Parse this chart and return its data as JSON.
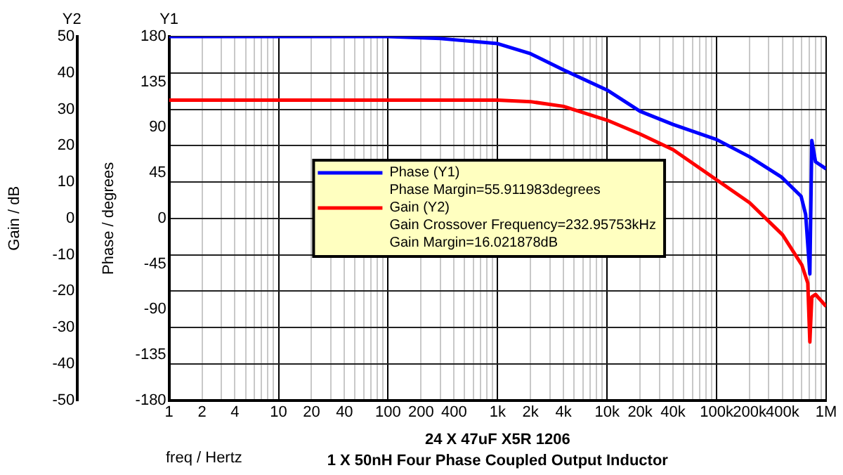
{
  "chart_data": {
    "type": "line",
    "xlabel": "freq / Hertz",
    "ylabel": "Phase / degrees",
    "y2label": "Gain / dB",
    "annotations": [
      "Y1",
      "Y2",
      "Phase Margin=55.911983degrees",
      "Gain Crossover Frequency=232.95753kHz",
      "Gain Margin=16.021878dB",
      "24 X 47uF X5R 1206",
      "1 X 50nH Four Phase Coupled Output Inductor"
    ],
    "log": "x",
    "grid": true,
    "legend": "left",
    "marker": "none",
    "line_style": "solid",
    "xlim": [
      1,
      1000000
    ],
    "xticks": [
      1,
      2,
      {
        "value": 3,
        "label": null
      },
      4,
      {
        "value": 5,
        "label": null
      },
      {
        "value": 6,
        "label": null
      },
      {
        "value": 7,
        "label": null
      },
      {
        "value": 8,
        "label": null
      },
      {
        "value": 9,
        "label": null
      },
      10,
      20,
      {
        "value": 30,
        "label": null
      },
      40,
      {
        "value": 50,
        "label": null
      },
      {
        "value": 60,
        "label": null
      },
      {
        "value": 70,
        "label": null
      },
      {
        "value": 80,
        "label": null
      },
      {
        "value": 90,
        "label": null
      },
      100,
      200,
      {
        "value": 300,
        "label": null
      },
      400,
      {
        "value": 500,
        "label": null
      },
      {
        "value": 600,
        "label": null
      },
      {
        "value": 700,
        "label": null
      },
      {
        "value": 800,
        "label": null
      },
      {
        "value": 900,
        "label": null
      },
      {
        "value": 1000,
        "label": "1k"
      },
      {
        "value": 2000,
        "label": "2k"
      },
      {
        "value": 3000,
        "label": null
      },
      {
        "value": 4000,
        "label": "4k"
      },
      {
        "value": 5000,
        "label": null
      },
      {
        "value": 6000,
        "label": null
      },
      {
        "value": 7000,
        "label": null
      },
      {
        "value": 8000,
        "label": null
      },
      {
        "value": 9000,
        "label": null
      },
      {
        "value": 10000,
        "label": "10k"
      },
      {
        "value": 20000,
        "label": "20k"
      },
      {
        "value": 30000,
        "label": null
      },
      {
        "value": 40000,
        "label": "40k"
      },
      {
        "value": 50000,
        "label": null
      },
      {
        "value": 60000,
        "label": null
      },
      {
        "value": 70000,
        "label": null
      },
      {
        "value": 80000,
        "label": null
      },
      {
        "value": 90000,
        "label": null
      },
      {
        "value": 100000,
        "label": "100k"
      },
      {
        "value": 200000,
        "label": "200k"
      },
      {
        "value": 300000,
        "label": null
      },
      {
        "value": 400000,
        "label": "400k"
      },
      {
        "value": 500000,
        "label": null
      },
      {
        "value": 600000,
        "label": null
      },
      {
        "value": 700000,
        "label": null
      },
      {
        "value": 800000,
        "label": null
      },
      {
        "value": 900000,
        "label": null
      },
      {
        "value": 1000000,
        "label": "1M"
      }
    ],
    "ylim": [
      -180,
      180
    ],
    "yticks": [
      -180,
      -135,
      -90,
      -45,
      0,
      45,
      90,
      135,
      180
    ],
    "y2lim": [
      -50,
      50
    ],
    "y2ticks": [
      -50,
      -40,
      -30,
      -20,
      -10,
      0,
      10,
      20,
      30,
      40,
      50
    ],
    "series": [
      {
        "name": "Phase (Y1)",
        "color": "#0000ff",
        "x": [
          1,
          10,
          100,
          300,
          1000,
          2000,
          4000,
          10000,
          20000,
          40000,
          100000,
          200000,
          390000,
          590000,
          650000,
          710000,
          740000,
          800000,
          1000000
        ],
        "values": [
          180,
          180,
          180,
          178,
          173,
          163,
          147,
          127,
          106,
          93,
          78,
          61,
          41,
          22,
          4,
          -55,
          77,
          56,
          49
        ]
      },
      {
        "name": "Gain (Y2)",
        "color": "#ff0000",
        "axis": "y2",
        "x": [
          1,
          100,
          1000,
          2000,
          4000,
          10000,
          20000,
          40000,
          100000,
          200000,
          400000,
          600000,
          680000,
          710000,
          740000,
          800000,
          1000000
        ],
        "values": [
          32.5,
          32.5,
          32.5,
          32.1,
          30.8,
          27,
          23.2,
          18.9,
          10.6,
          4.3,
          -4.5,
          -12.8,
          -17.8,
          -34,
          -21.6,
          -20.9,
          -24.2
        ]
      }
    ]
  }
}
